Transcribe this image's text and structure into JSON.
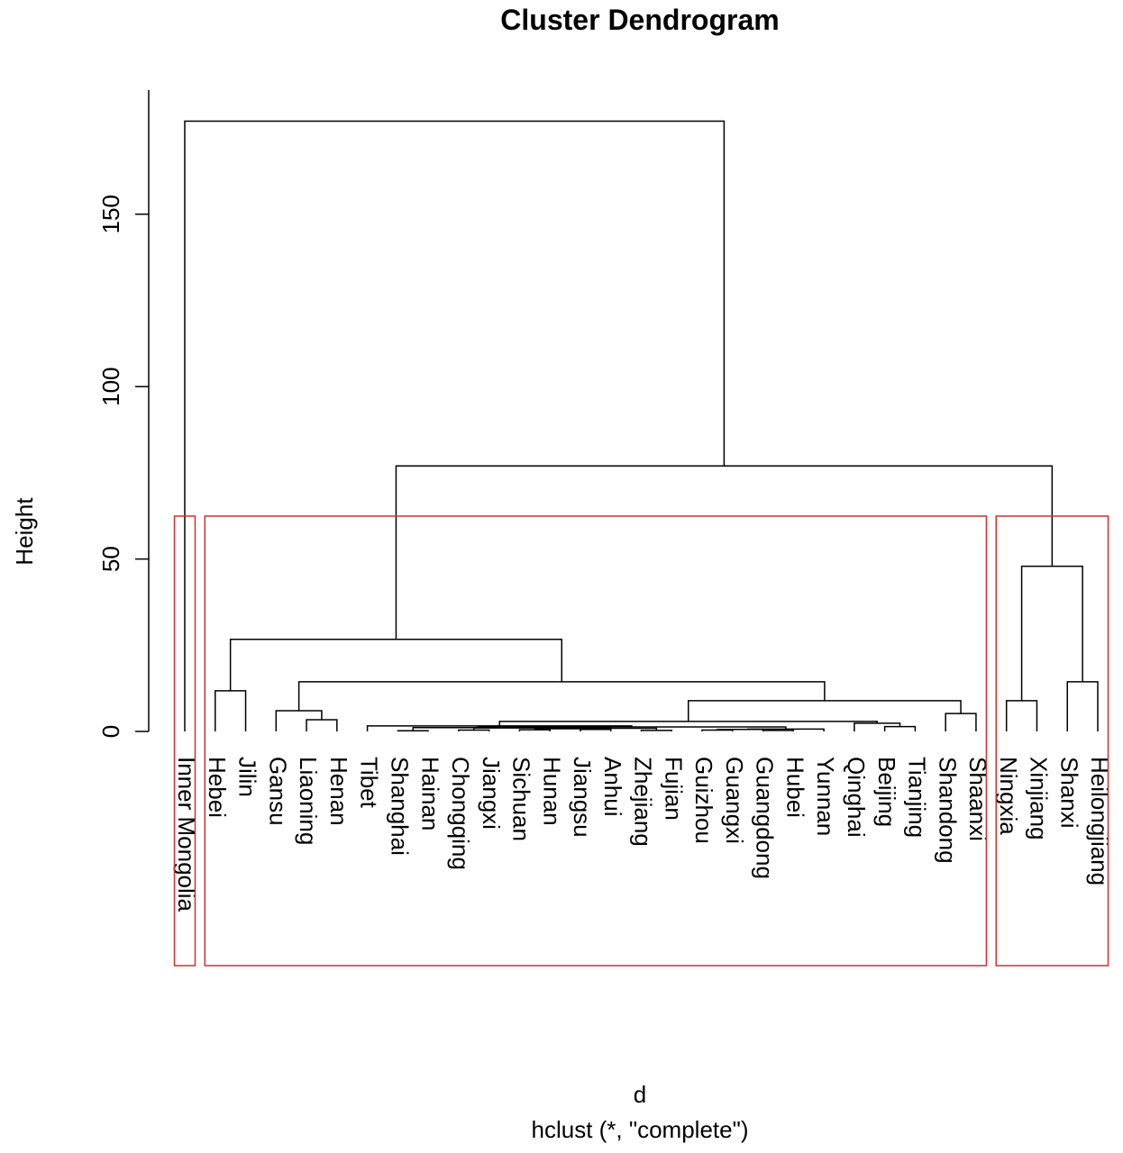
{
  "chart_data": {
    "type": "dendrogram",
    "title": "Cluster Dendrogram",
    "ylabel": "Height",
    "xlabel": "d",
    "subtitle": "hclust (*, \"complete\")",
    "labels": [
      "Inner Mongolia",
      "Hebei",
      "Jilin",
      "Gansu",
      "Liaoning",
      "Henan",
      "Tibet",
      "Shanghai",
      "Hainan",
      "Chongqing",
      "Jiangxi",
      "Sichuan",
      "Hunan",
      "Jiangsu",
      "Anhui",
      "Zhejiang",
      "Fujian",
      "Guizhou",
      "Guangxi",
      "Guangdong",
      "Hubei",
      "Yunnan",
      "Qinghai",
      "Beijing",
      "Tianjing",
      "Shandong",
      "Shaanxi",
      "Ningxia",
      "Xinjiang",
      "Shanxi",
      "Heilongjiang"
    ],
    "merge": [
      [
        -8,
        -9
      ],
      [
        -10,
        -11
      ],
      [
        -12,
        -13
      ],
      [
        -14,
        -15
      ],
      [
        -16,
        -17
      ],
      [
        -18,
        -19
      ],
      [
        -20,
        -21
      ],
      [
        6,
        7
      ],
      [
        8,
        -22
      ],
      [
        3,
        4
      ],
      [
        10,
        5
      ],
      [
        2,
        11
      ],
      [
        1,
        12
      ],
      [
        13,
        9
      ],
      [
        -7,
        14
      ],
      [
        -24,
        -25
      ],
      [
        -23,
        16
      ],
      [
        15,
        17
      ],
      [
        -26,
        -27
      ],
      [
        18,
        19
      ],
      [
        -5,
        -6
      ],
      [
        -4,
        21
      ],
      [
        22,
        20
      ],
      [
        -2,
        -3
      ],
      [
        24,
        23
      ],
      [
        -28,
        -29
      ],
      [
        -30,
        -31
      ],
      [
        26,
        27
      ],
      [
        25,
        28
      ],
      [
        -1,
        29
      ]
    ],
    "height": [
      0.2,
      0.4,
      0.5,
      0.6,
      0.3,
      0.4,
      0.3,
      0.6,
      0.7,
      0.8,
      0.9,
      1.0,
      1.1,
      1.3,
      1.6,
      1.4,
      2.4,
      2.9,
      5.2,
      8.9,
      3.4,
      6.0,
      14.4,
      11.8,
      26.7,
      8.9,
      14.4,
      47.9,
      77,
      177
    ],
    "ylim": [
      0,
      186
    ],
    "yticks": [
      0,
      50,
      100,
      150
    ],
    "k": 3,
    "rect_color": "#d03030",
    "color": "#000000"
  }
}
